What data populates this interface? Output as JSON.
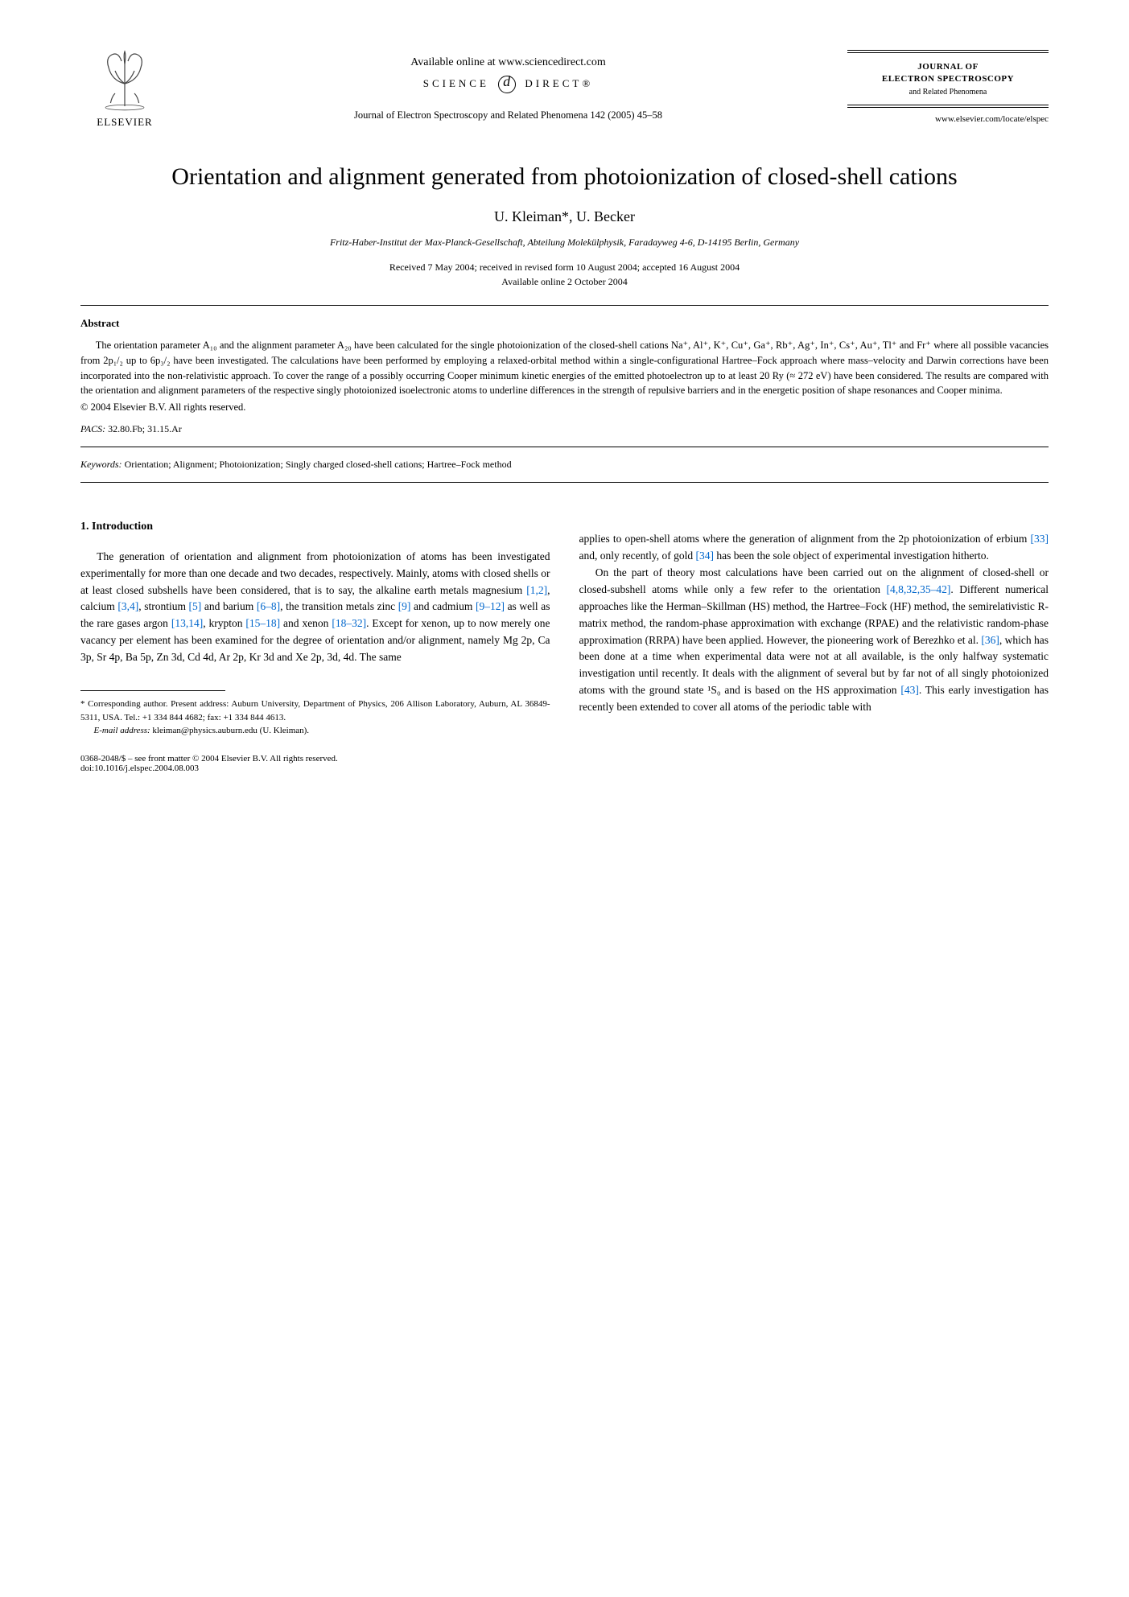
{
  "header": {
    "publisher": "ELSEVIER",
    "available_online": "Available online at www.sciencedirect.com",
    "science_direct": "SCIENCE",
    "science_direct2": "DIRECT®",
    "journal_ref": "Journal of Electron Spectroscopy and Related Phenomena 142 (2005) 45–58",
    "journal_name_1": "JOURNAL OF",
    "journal_name_2": "ELECTRON SPECTROSCOPY",
    "journal_sub": "and Related Phenomena",
    "journal_url": "www.elsevier.com/locate/elspec"
  },
  "title": "Orientation and alignment generated from photoionization of closed-shell cations",
  "authors": "U. Kleiman*, U. Becker",
  "affiliation": "Fritz-Haber-Institut der Max-Planck-Gesellschaft, Abteilung Molekülphysik, Faradayweg 4-6, D-14195 Berlin, Germany",
  "dates_1": "Received 7 May 2004; received in revised form 10 August 2004; accepted 16 August 2004",
  "dates_2": "Available online 2 October 2004",
  "abstract": {
    "heading": "Abstract",
    "text": "The orientation parameter A₁₀ and the alignment parameter A₂₀ have been calculated for the single photoionization of the closed-shell cations Na⁺, Al⁺, K⁺, Cu⁺, Ga⁺, Rb⁺, Ag⁺, In⁺, Cs⁺, Au⁺, Tl⁺ and Fr⁺ where all possible vacancies from 2p₁/₂ up to 6p₃/₂ have been investigated. The calculations have been performed by employing a relaxed-orbital method within a single-configurational Hartree–Fock approach where mass–velocity and Darwin corrections have been incorporated into the non-relativistic approach. To cover the range of a possibly occurring Cooper minimum kinetic energies of the emitted photoelectron up to at least 20 Ry (≈ 272 eV) have been considered. The results are compared with the orientation and alignment parameters of the respective singly photoionized isoelectronic atoms to underline differences in the strength of repulsive barriers and in the energetic position of shape resonances and Cooper minima.",
    "copyright": "© 2004 Elsevier B.V. All rights reserved."
  },
  "pacs": {
    "label": "PACS:",
    "value": " 32.80.Fb; 31.15.Ar"
  },
  "keywords": {
    "label": "Keywords:",
    "value": " Orientation; Alignment; Photoionization; Singly charged closed-shell cations; Hartree–Fock method"
  },
  "section1": {
    "heading": "1.  Introduction",
    "col1_p1": "The generation of orientation and alignment from photoionization of atoms has been investigated experimentally for more than one decade and two decades, respectively. Mainly, atoms with closed shells or at least closed subshells have been considered, that is to say, the alkaline earth metals magnesium [1,2], calcium [3,4], strontium [5] and barium [6–8], the transition metals zinc [9] and cadmium [9–12] as well as the rare gases argon [13,14], krypton [15–18] and xenon [18–32]. Except for xenon, up to now merely one vacancy per element has been examined for the degree of orientation and/or alignment, namely Mg 2p, Ca 3p, Sr 4p, Ba 5p, Zn 3d, Cd 4d, Ar 2p, Kr 3d and Xe 2p, 3d, 4d. The same",
    "col2_p1": "applies to open-shell atoms where the generation of alignment from the 2p photoionization of erbium [33] and, only recently, of gold [34] has been the sole object of experimental investigation hitherto.",
    "col2_p2": "On the part of theory most calculations have been carried out on the alignment of closed-shell or closed-subshell atoms while only a few refer to the orientation [4,8,32,35–42]. Different numerical approaches like the Herman–Skillman (HS) method, the Hartree–Fock (HF) method, the semirelativistic R-matrix method, the random-phase approximation with exchange (RPAE) and the relativistic random-phase approximation (RRPA) have been applied. However, the pioneering work of Berezhko et al. [36], which has been done at a time when experimental data were not at all available, is the only halfway systematic investigation until recently. It deals with the alignment of several but by far not of all singly photoionized atoms with the ground state ¹S₀ and is based on the HS approximation [43]. This early investigation has recently been extended to cover all atoms of the periodic table with"
  },
  "footnote": {
    "corr": "* Corresponding author. Present address: Auburn University, Department of Physics, 206 Allison Laboratory, Auburn, AL 36849-5311, USA. Tel.: +1 334 844 4682; fax: +1 334 844 4613.",
    "email_label": "E-mail address:",
    "email": " kleiman@physics.auburn.edu (U. Kleiman)."
  },
  "footer": {
    "line1": "0368-2048/$ – see front matter © 2004 Elsevier B.V. All rights reserved.",
    "line2": "doi:10.1016/j.elspec.2004.08.003"
  },
  "colors": {
    "link": "#0066cc",
    "text": "#000000",
    "background": "#ffffff"
  }
}
